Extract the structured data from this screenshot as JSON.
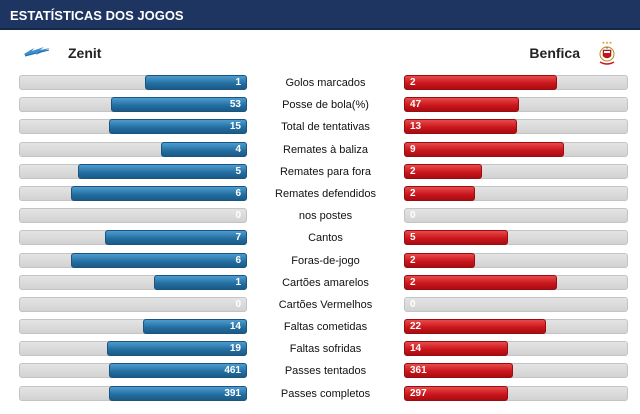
{
  "header": {
    "title": "ESTATÍSTICAS DOS JOGOS"
  },
  "teams": {
    "home": {
      "name": "Zenit",
      "logo_icon": "zenit-logo-icon",
      "color": "#236d9f"
    },
    "away": {
      "name": "Benfica",
      "logo_icon": "benfica-crest-icon",
      "color": "#c8141a"
    }
  },
  "stats_max": {
    "goals": 2
  },
  "stats": [
    {
      "key": "goals",
      "label": "Golos marcados",
      "home": "1",
      "away": "2",
      "home_frac": 0.45,
      "away_frac": 0.69
    },
    {
      "key": "possession",
      "label": "Posse de bola(%)",
      "home": "53",
      "away": "47",
      "home_frac": 0.6,
      "away_frac": 0.52
    },
    {
      "key": "attempts",
      "label": "Total de tentativas",
      "home": "15",
      "away": "13",
      "home_frac": 0.61,
      "away_frac": 0.51
    },
    {
      "key": "on_target",
      "label": "Remates à baliza",
      "home": "4",
      "away": "9",
      "home_frac": 0.38,
      "away_frac": 0.72
    },
    {
      "key": "off_target",
      "label": "Remates para fora",
      "home": "5",
      "away": "2",
      "home_frac": 0.75,
      "away_frac": 0.35
    },
    {
      "key": "blocked",
      "label": "Remates defendidos",
      "home": "6",
      "away": "2",
      "home_frac": 0.78,
      "away_frac": 0.32
    },
    {
      "key": "posts",
      "label": "nos postes",
      "home": "0",
      "away": "0",
      "home_frac": 0,
      "away_frac": 0
    },
    {
      "key": "corners",
      "label": "Cantos",
      "home": "7",
      "away": "5",
      "home_frac": 0.63,
      "away_frac": 0.47
    },
    {
      "key": "offsides",
      "label": "Foras-de-jogo",
      "home": "6",
      "away": "2",
      "home_frac": 0.78,
      "away_frac": 0.32
    },
    {
      "key": "yellow",
      "label": "Cartões amarelos",
      "home": "1",
      "away": "2",
      "home_frac": 0.41,
      "away_frac": 0.69
    },
    {
      "key": "red",
      "label": "Cartões Vermelhos",
      "home": "0",
      "away": "0",
      "home_frac": 0,
      "away_frac": 0
    },
    {
      "key": "fouls_committed",
      "label": "Faltas cometidas",
      "home": "14",
      "away": "22",
      "home_frac": 0.46,
      "away_frac": 0.64
    },
    {
      "key": "fouls_suffered",
      "label": "Faltas sofridas",
      "home": "19",
      "away": "14",
      "home_frac": 0.62,
      "away_frac": 0.47
    },
    {
      "key": "passes_attempted",
      "label": "Passes tentados",
      "home": "461",
      "away": "361",
      "home_frac": 0.61,
      "away_frac": 0.49
    },
    {
      "key": "passes_completed",
      "label": "Passes completos",
      "home": "391",
      "away": "297",
      "home_frac": 0.61,
      "away_frac": 0.47
    }
  ]
}
